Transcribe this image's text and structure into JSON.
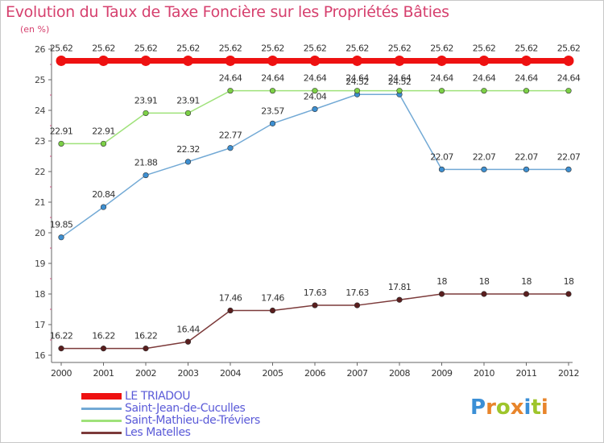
{
  "header": {
    "title": "Evolution du Taux de Taxe Foncière sur les Propriétés Bâties",
    "unit": "(en %)"
  },
  "brand": {
    "letters": [
      "P",
      "r",
      "o",
      "x",
      "i",
      "t",
      "i"
    ],
    "colors": [
      "#3b8fd6",
      "#e8852b",
      "#9ec52b",
      "#e8852b",
      "#3b8fd6",
      "#9ec52b",
      "#e8852b"
    ]
  },
  "chart_data": {
    "type": "line",
    "title": "Evolution du Taux de Taxe Foncière sur les Propriétés Bâties",
    "ylabel": "(en %)",
    "xlabel": "",
    "x": [
      "2000",
      "2001",
      "2002",
      "2003",
      "2004",
      "2005",
      "2006",
      "2007",
      "2008",
      "2009",
      "2010",
      "2011",
      "2012"
    ],
    "ylim": [
      16,
      26
    ],
    "yticks": [
      "16",
      "17",
      "18",
      "19",
      "20",
      "21",
      "22",
      "23",
      "24",
      "25",
      "26"
    ],
    "grid": false,
    "legend_position": "bottom-left",
    "series": [
      {
        "name": "LE TRIADOU",
        "color": "#ee1111",
        "marker_color": "#ee1111",
        "values": [
          25.62,
          25.62,
          25.62,
          25.62,
          25.62,
          25.62,
          25.62,
          25.62,
          25.62,
          25.62,
          25.62,
          25.62,
          25.62
        ],
        "labels": [
          "25.62",
          "25.62",
          "25.62",
          "25.62",
          "25.62",
          "25.62",
          "25.62",
          "25.62",
          "25.62",
          "25.62",
          "25.62",
          "25.62",
          "25.62"
        ]
      },
      {
        "name": "Saint-Jean-de-Cuculles",
        "color": "#72a9d5",
        "marker_color": "#3d8fd1",
        "values": [
          19.85,
          20.84,
          21.88,
          22.32,
          22.77,
          23.57,
          24.04,
          24.52,
          24.52,
          22.07,
          22.07,
          22.07,
          22.07
        ],
        "labels": [
          "19.85",
          "20.84",
          "21.88",
          "22.32",
          "22.77",
          "23.57",
          "24.04",
          "24.52",
          "24.52",
          "22.07",
          "22.07",
          "22.07",
          "22.07"
        ]
      },
      {
        "name": "Saint-Mathieu-de-Tréviers",
        "color": "#9fe27a",
        "marker_color": "#7cd046",
        "values": [
          22.91,
          22.91,
          23.91,
          23.91,
          24.64,
          24.64,
          24.64,
          24.64,
          24.64,
          24.64,
          24.64,
          24.64,
          24.64
        ],
        "labels": [
          "22.91",
          "22.91",
          "23.91",
          "23.91",
          "24.64",
          "24.64",
          "24.64",
          "24.64",
          "24.64",
          "24.64",
          "24.64",
          "24.64",
          "24.64"
        ]
      },
      {
        "name": "Les Matelles",
        "color": "#7c3a3a",
        "marker_color": "#5a1e1e",
        "values": [
          16.22,
          16.22,
          16.22,
          16.44,
          17.46,
          17.46,
          17.63,
          17.63,
          17.81,
          18,
          18,
          18,
          18
        ],
        "labels": [
          "16.22",
          "16.22",
          "16.22",
          "16.44",
          "17.46",
          "17.46",
          "17.63",
          "17.63",
          "17.81",
          "18",
          "18",
          "18",
          "18"
        ]
      }
    ]
  }
}
